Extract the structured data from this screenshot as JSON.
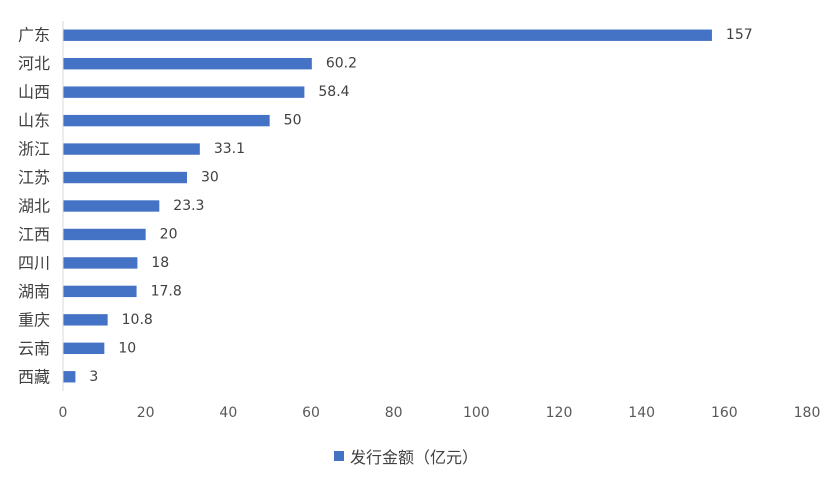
{
  "chart_data": {
    "type": "bar",
    "orientation": "horizontal",
    "categories": [
      "广东",
      "河北",
      "山西",
      "山东",
      "浙江",
      "江苏",
      "湖北",
      "江西",
      "四川",
      "湖南",
      "重庆",
      "云南",
      "西藏"
    ],
    "series": [
      {
        "name": "发行金额（亿元）",
        "values": [
          157,
          60.2,
          58.4,
          50,
          33.1,
          30,
          23.3,
          20,
          18,
          17.8,
          10.8,
          10,
          3
        ]
      }
    ],
    "data_labels": [
      "157",
      "60.2",
      "58.4",
      "50",
      "33.1",
      "30",
      "23.3",
      "20",
      "18",
      "17.8",
      "10.8",
      "10",
      "3"
    ],
    "x_ticks": [
      "0",
      "20",
      "40",
      "60",
      "80",
      "100",
      "120",
      "140",
      "160",
      "180"
    ],
    "xlim": [
      0,
      180
    ],
    "grid": false,
    "legend_position": "bottom",
    "bar_color": "#4472C4"
  },
  "legend": {
    "label": "发行金额（亿元）"
  }
}
